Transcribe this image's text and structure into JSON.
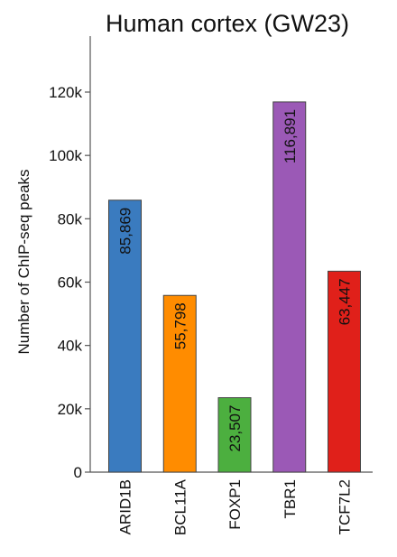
{
  "chart_data": {
    "type": "bar",
    "title": "Human cortex (GW23)",
    "ylabel": "Number of ChIP-seq peaks",
    "xlabel": "",
    "categories": [
      "ARID1B",
      "BCL11A",
      "FOXP1",
      "TBR1",
      "TCF7L2"
    ],
    "values": [
      85869,
      55798,
      23507,
      116891,
      63447
    ],
    "data_labels": [
      "85,869",
      "55,798",
      "23,507",
      "116,891",
      "63,447"
    ],
    "colors": [
      "#3a7bbf",
      "#ff8c00",
      "#4caf3f",
      "#9b59b6",
      "#e0201a"
    ],
    "ylim": [
      0,
      120000
    ],
    "yticks": [
      0,
      20000,
      40000,
      60000,
      80000,
      100000,
      120000
    ],
    "ytick_labels": [
      "0",
      "20k",
      "40k",
      "60k",
      "80k",
      "100k",
      "120k"
    ],
    "grid": false,
    "legend": "none"
  }
}
